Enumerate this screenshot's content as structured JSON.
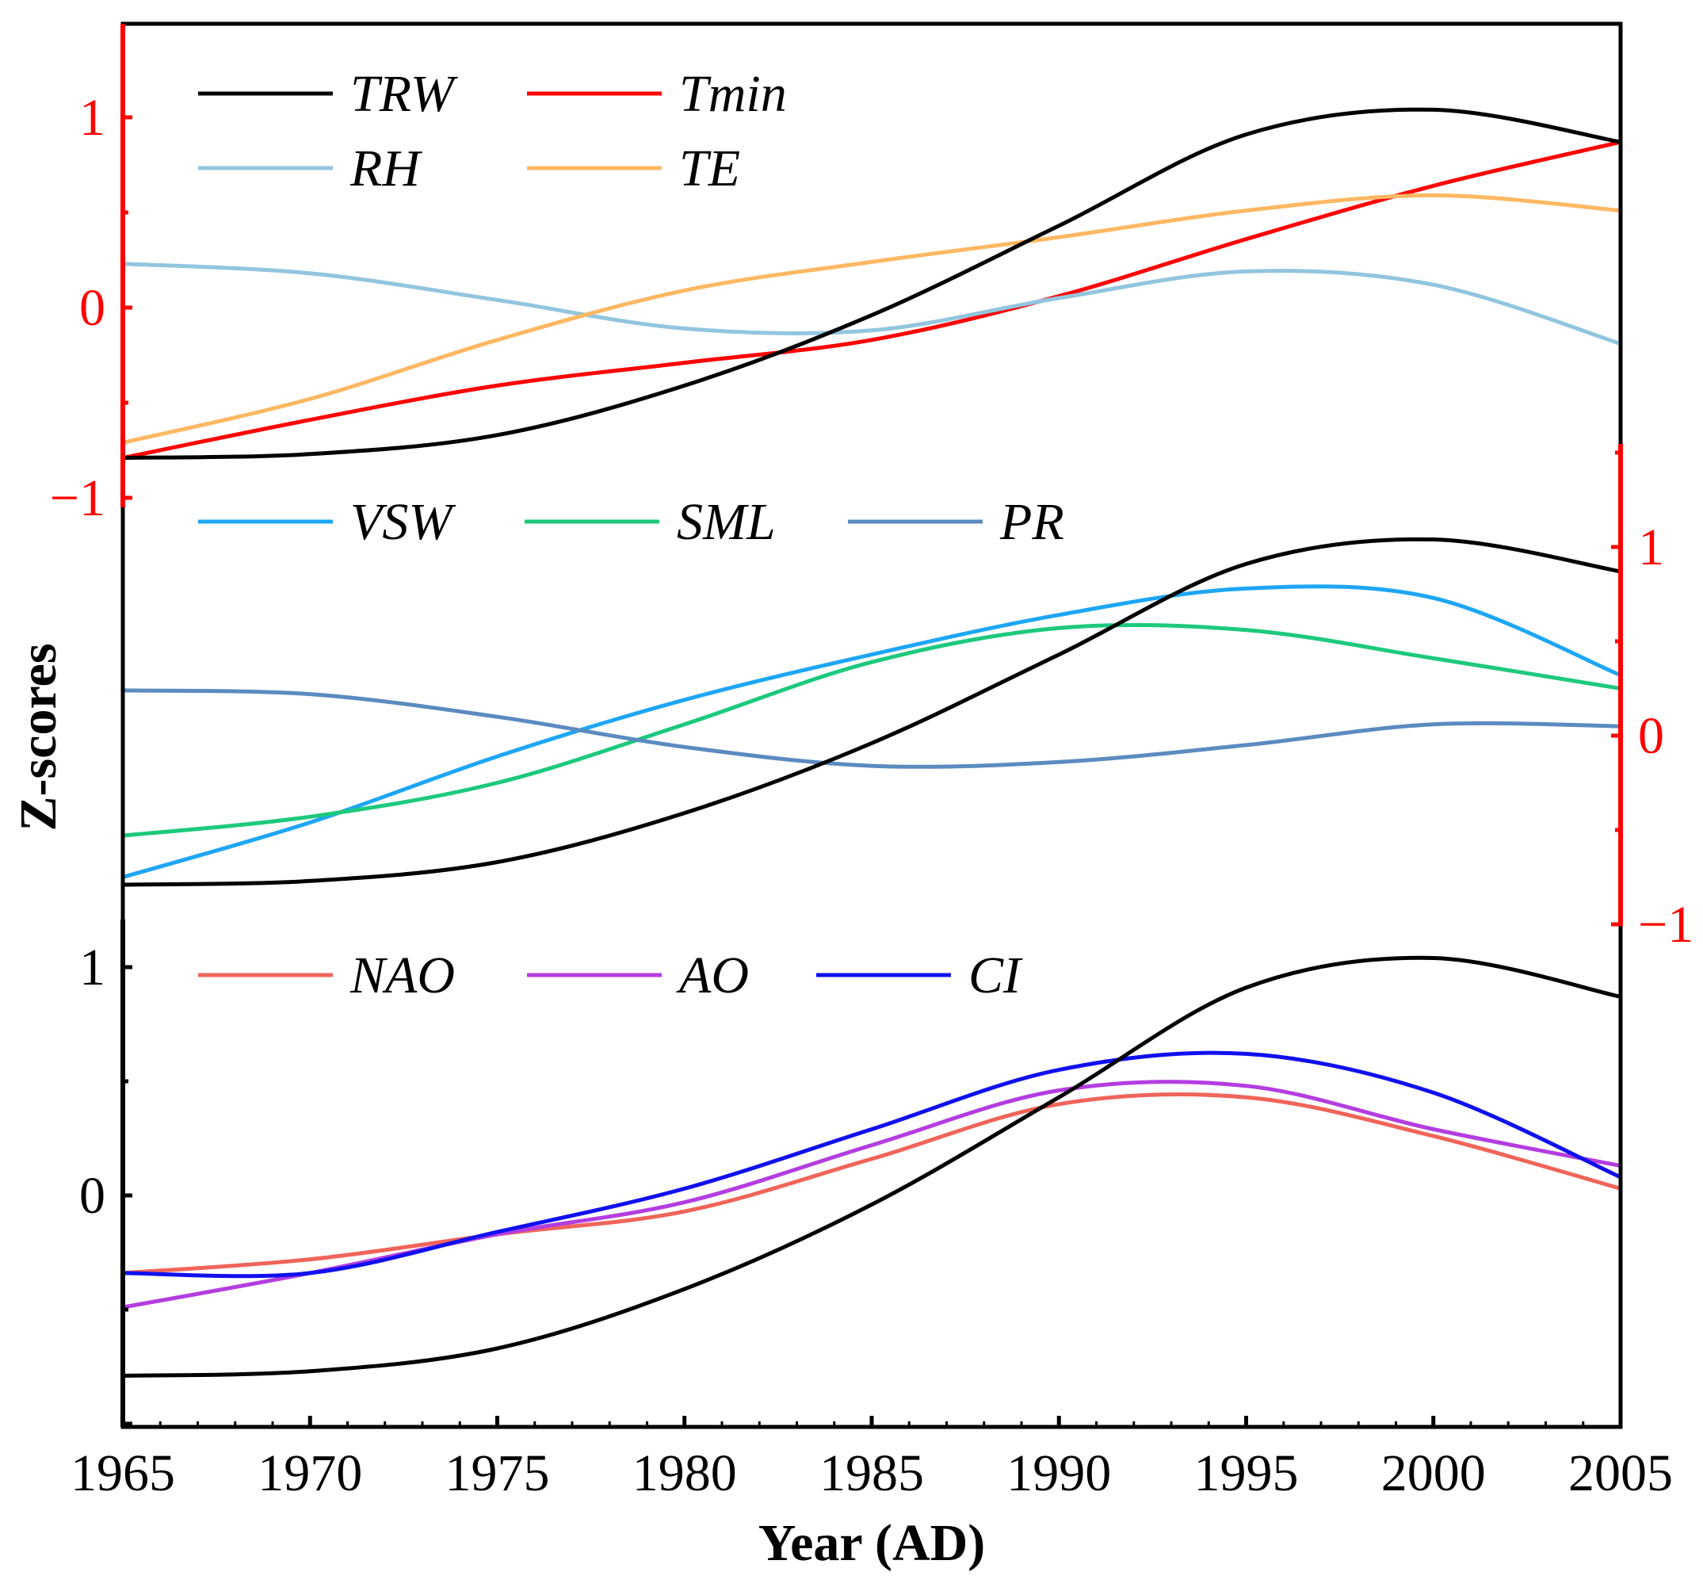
{
  "chart_data": {
    "type": "line",
    "xlabel": "Year (AD)",
    "ylabel": "Z-scores",
    "x_range": [
      1965,
      2005
    ],
    "x_ticks": [
      "1965",
      "1970",
      "1975",
      "1980",
      "1985",
      "1990",
      "1995",
      "2000",
      "2005"
    ],
    "colors": {
      "frame": "#000000",
      "axis_accent": "#ff0000",
      "TRW": "#000000",
      "Tmin": "#ff0000",
      "RH": "#92c5de",
      "TE": "#fdb863",
      "VSW": "#1ea6f5",
      "SML": "#1dc97c",
      "PR": "#5b8bbf",
      "NAO": "#f0645a",
      "AO": "#b43de0",
      "CI": "#1010ee"
    },
    "panels": [
      {
        "name": "climate",
        "axis_side": "left",
        "axis_color": "#ff0000",
        "ylim": [
          -1.0,
          1.5
        ],
        "y_ticks": [
          "1",
          "0",
          "−1"
        ],
        "legend": [
          "TRW",
          "Tmin",
          "RH",
          "TE"
        ],
        "series": [
          {
            "name": "TRW",
            "x": [
              1965,
              1970,
              1975,
              1980,
              1985,
              1990,
              1995,
              2000,
              2005
            ],
            "values": [
              -0.79,
              -0.77,
              -0.67,
              -0.41,
              -0.04,
              0.43,
              0.91,
              1.04,
              0.87
            ]
          },
          {
            "name": "Tmin",
            "x": [
              1965,
              1970,
              1975,
              1980,
              1985,
              1990,
              1995,
              2000,
              2005
            ],
            "values": [
              -0.79,
              -0.59,
              -0.41,
              -0.29,
              -0.17,
              0.06,
              0.36,
              0.64,
              0.87
            ]
          },
          {
            "name": "RH",
            "x": [
              1965,
              1970,
              1975,
              1980,
              1985,
              1990,
              1995,
              2000,
              2005
            ],
            "values": [
              0.23,
              0.18,
              0.04,
              -0.11,
              -0.12,
              0.05,
              0.19,
              0.12,
              -0.19
            ]
          },
          {
            "name": "TE",
            "x": [
              1965,
              1970,
              1975,
              1980,
              1985,
              1990,
              1995,
              2000,
              2005
            ],
            "values": [
              -0.71,
              -0.48,
              -0.17,
              0.09,
              0.24,
              0.37,
              0.51,
              0.59,
              0.51
            ]
          }
        ]
      },
      {
        "name": "soil",
        "axis_side": "right",
        "axis_color": "#ff0000",
        "ylim": [
          -1.0,
          1.5
        ],
        "y_ticks": [
          "1",
          "0",
          "−1"
        ],
        "legend": [
          "VSW",
          "SML",
          "PR"
        ],
        "series": [
          {
            "name": "TRW",
            "x": [
              1965,
              1970,
              1975,
              1980,
              1985,
              1990,
              1995,
              2000,
              2005
            ],
            "values": [
              -0.79,
              -0.77,
              -0.67,
              -0.41,
              -0.04,
              0.43,
              0.91,
              1.04,
              0.87
            ]
          },
          {
            "name": "VSW",
            "x": [
              1965,
              1970,
              1975,
              1980,
              1985,
              1990,
              1995,
              2000,
              2005
            ],
            "values": [
              -0.75,
              -0.46,
              -0.11,
              0.19,
              0.43,
              0.64,
              0.78,
              0.73,
              0.32
            ]
          },
          {
            "name": "SML",
            "x": [
              1965,
              1970,
              1975,
              1980,
              1985,
              1990,
              1995,
              2000,
              2005
            ],
            "values": [
              -0.53,
              -0.43,
              -0.25,
              0.06,
              0.39,
              0.57,
              0.56,
              0.41,
              0.25
            ]
          },
          {
            "name": "PR",
            "x": [
              1965,
              1970,
              1975,
              1980,
              1985,
              1990,
              1995,
              2000,
              2005
            ],
            "values": [
              0.24,
              0.22,
              0.1,
              -0.06,
              -0.16,
              -0.14,
              -0.05,
              0.06,
              0.05
            ]
          }
        ]
      },
      {
        "name": "circulation",
        "axis_side": "left",
        "axis_color": "#000000",
        "ylim": [
          -1.0,
          1.35
        ],
        "y_ticks": [
          "1",
          "0"
        ],
        "legend": [
          "NAO",
          "AO",
          "CI"
        ],
        "series": [
          {
            "name": "TRW",
            "x": [
              1965,
              1970,
              1975,
              1980,
              1985,
              1990,
              1995,
              2000,
              2005
            ],
            "values": [
              -0.79,
              -0.77,
              -0.67,
              -0.41,
              -0.04,
              0.43,
              0.91,
              1.04,
              0.87
            ]
          },
          {
            "name": "NAO",
            "x": [
              1965,
              1970,
              1975,
              1980,
              1985,
              1990,
              1995,
              2000,
              2005
            ],
            "values": [
              -0.34,
              -0.28,
              -0.17,
              -0.07,
              0.16,
              0.4,
              0.43,
              0.26,
              0.03
            ]
          },
          {
            "name": "AO",
            "x": [
              1965,
              1970,
              1975,
              1980,
              1985,
              1990,
              1995,
              2000,
              2005
            ],
            "values": [
              -0.49,
              -0.34,
              -0.17,
              -0.03,
              0.22,
              0.46,
              0.48,
              0.29,
              0.13
            ]
          },
          {
            "name": "CI",
            "x": [
              1965,
              1970,
              1975,
              1980,
              1985,
              1990,
              1995,
              2000,
              2005
            ],
            "values": [
              -0.34,
              -0.34,
              -0.16,
              0.03,
              0.29,
              0.55,
              0.62,
              0.45,
              0.08
            ]
          }
        ]
      }
    ]
  }
}
